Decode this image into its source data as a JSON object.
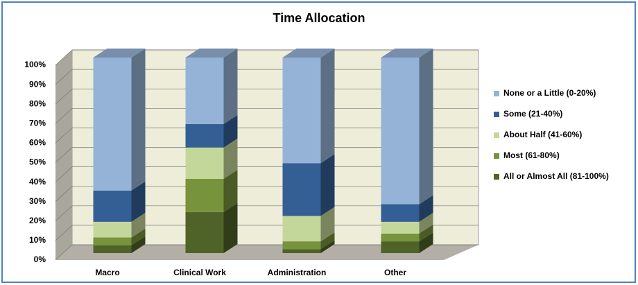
{
  "chart_data": {
    "type": "bar3d_stacked",
    "title": "Time Allocation",
    "categories": [
      "Macro",
      "Clinical Work",
      "Administration",
      "Other"
    ],
    "series": [
      {
        "name": "None or a Little (0-20%)",
        "color": "#95b3d7",
        "values": [
          68,
          34,
          54,
          75
        ]
      },
      {
        "name": "Some (21-40%)",
        "color": "#345f95",
        "values": [
          16,
          12,
          27,
          9
        ]
      },
      {
        "name": "About Half (41-60%)",
        "color": "#c4d79b",
        "values": [
          8,
          16,
          13,
          6
        ]
      },
      {
        "name": "Most (61-80%)",
        "color": "#77933c",
        "values": [
          4,
          17,
          4,
          4
        ]
      },
      {
        "name": "All or Almost All (81-100%)",
        "color": "#4f6228",
        "values": [
          4,
          21,
          2,
          6
        ]
      }
    ],
    "ylim": [
      0,
      100
    ],
    "yticks": [
      {
        "value": 0,
        "label": "0%"
      },
      {
        "value": 10,
        "label": "10%"
      },
      {
        "value": 20,
        "label": "20%"
      },
      {
        "value": 30,
        "label": "30%"
      },
      {
        "value": 40,
        "label": "40%"
      },
      {
        "value": 50,
        "label": "50%"
      },
      {
        "value": 60,
        "label": "60%"
      },
      {
        "value": 70,
        "label": "70%"
      },
      {
        "value": 80,
        "label": "80%"
      },
      {
        "value": 90,
        "label": "90%"
      },
      {
        "value": 100,
        "label": "100%"
      }
    ],
    "grid": true,
    "legend": "right"
  }
}
